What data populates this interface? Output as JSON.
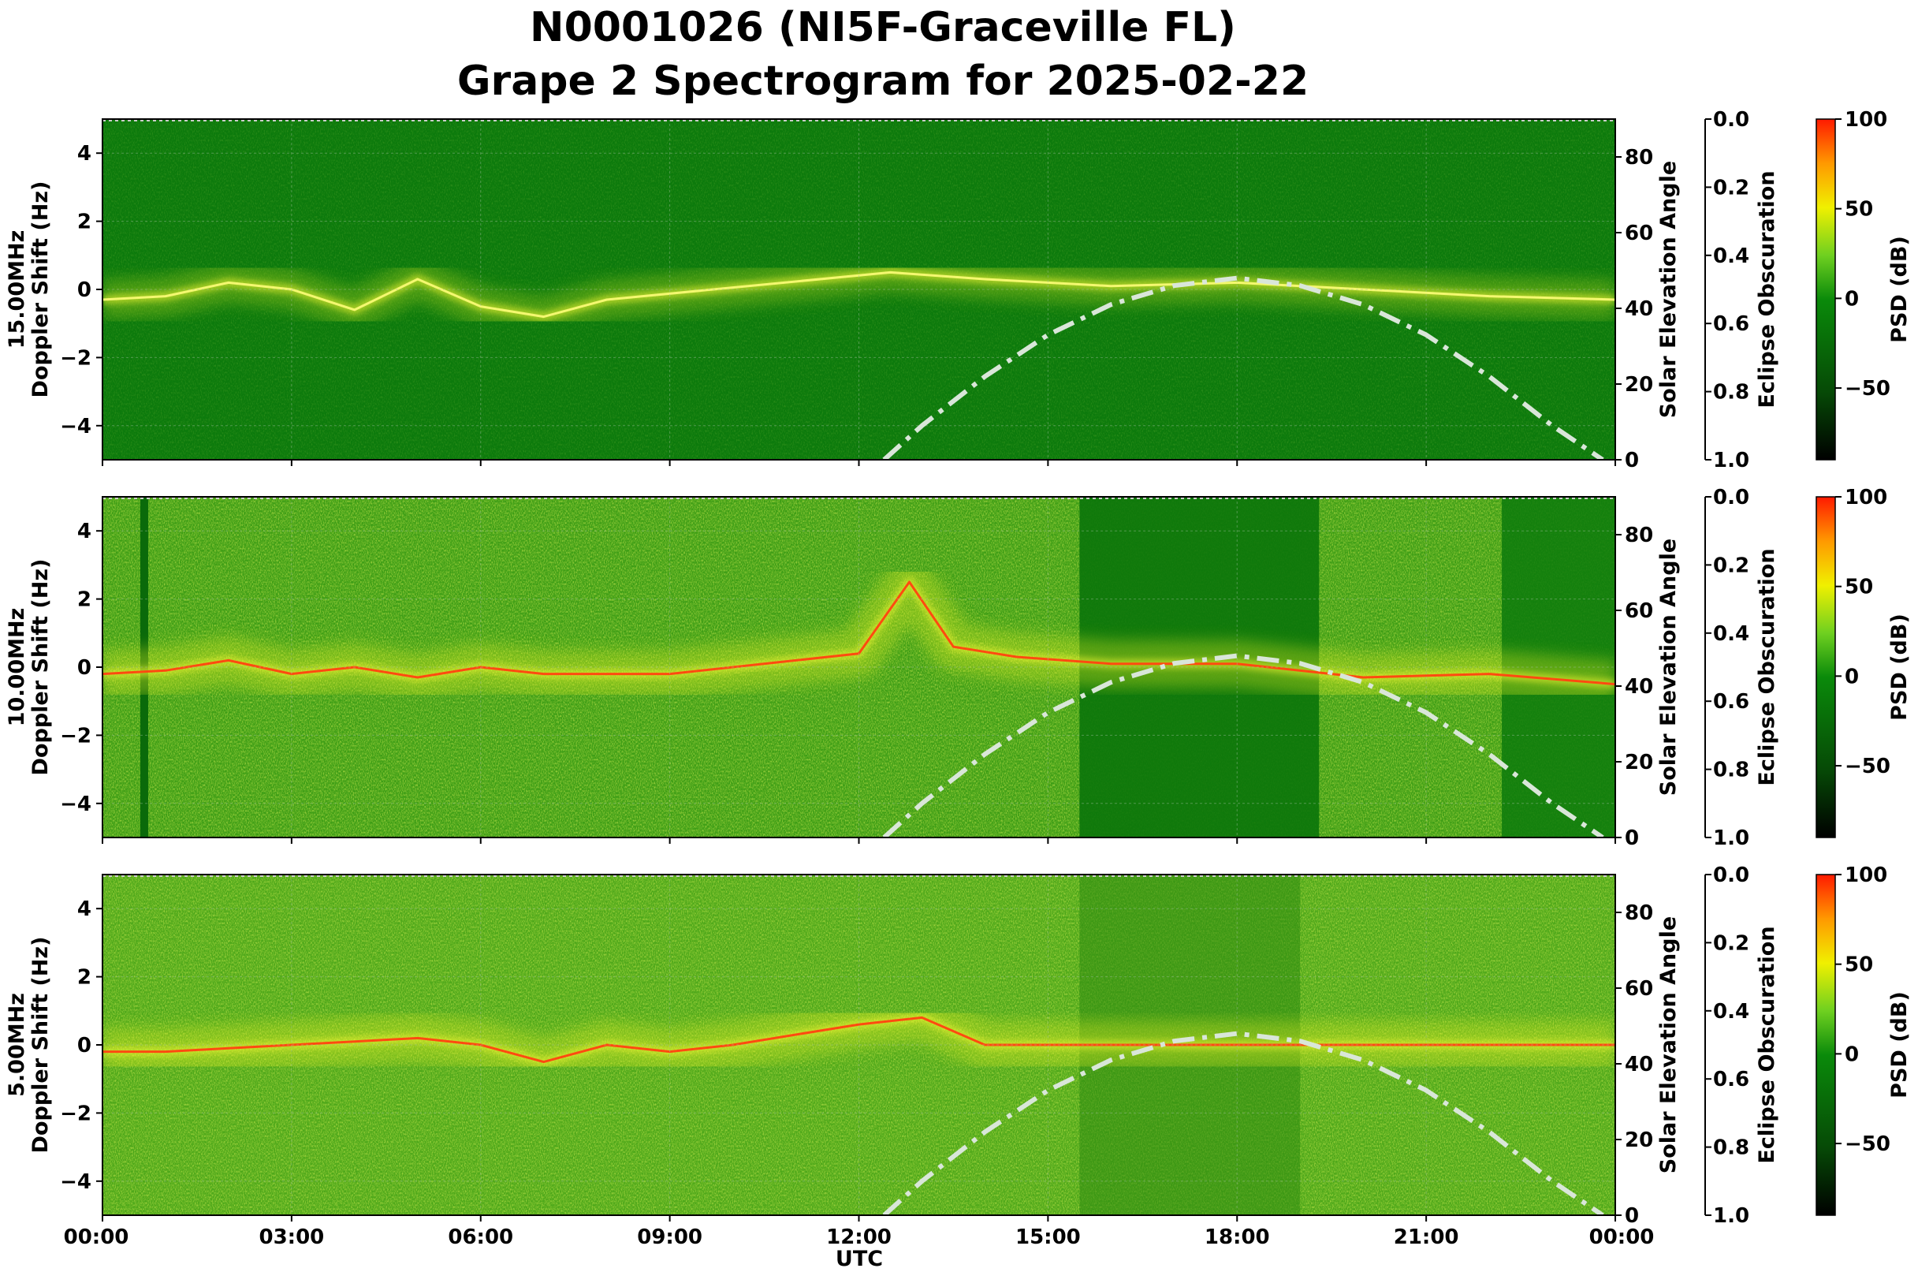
{
  "title_line1": "N0001026 (NI5F-Graceville FL)",
  "title_line2": "Grape 2 Spectrogram for 2025-02-22",
  "xlabel": "UTC",
  "x_ticks": [
    "00:00",
    "03:00",
    "06:00",
    "09:00",
    "12:00",
    "15:00",
    "18:00",
    "21:00",
    "00:00"
  ],
  "axis_labels": {
    "doppler": "Doppler Shift (Hz)",
    "solar": "Solar Elevation Angle",
    "eclipse": "Eclipse Obscuration",
    "psd": "PSD (dB)"
  },
  "doppler_ticks": [
    "4",
    "2",
    "0",
    "−2",
    "−4"
  ],
  "solar_ticks": [
    "80",
    "60",
    "40",
    "20",
    "0"
  ],
  "eclipse_ticks": [
    "0.0",
    "0.2",
    "0.4",
    "0.6",
    "0.8",
    "1.0"
  ],
  "psd_ticks": [
    "100",
    "50",
    "0",
    "−50"
  ],
  "colors": {
    "psd_high": "#ff1a00",
    "psd_mid": "#f0f000",
    "psd_zero": "#0a8a0a",
    "psd_low": "#000000",
    "solar_curve": "#d9e6d9"
  },
  "chart_data": [
    {
      "type": "heatmap",
      "panel_label": "15.00MHz",
      "x_range_hours": [
        0,
        24
      ],
      "ylim": [
        -5,
        5
      ],
      "y2lim_solar_deg": [
        0,
        90
      ],
      "y3lim_eclipse": [
        1.0,
        0.0
      ],
      "clim_psd_db": [
        -90,
        100
      ],
      "doppler_trace": {
        "x_hours": [
          0,
          1,
          2,
          3,
          4,
          5,
          6,
          7,
          8,
          12.5,
          14,
          16,
          18,
          20,
          22,
          24
        ],
        "y_hz": [
          -0.3,
          -0.2,
          0.2,
          0.0,
          -0.6,
          0.3,
          -0.5,
          -0.8,
          -0.3,
          0.5,
          0.3,
          0.1,
          0.2,
          0.0,
          -0.2,
          -0.3
        ]
      },
      "solar_elevation": {
        "x_hours": [
          12.4,
          13,
          14,
          15,
          16,
          17,
          18,
          19,
          20,
          21,
          22,
          23,
          23.8
        ],
        "deg": [
          0,
          9,
          22,
          33,
          41,
          46,
          48,
          46,
          41,
          33,
          22,
          9,
          0
        ]
      }
    },
    {
      "type": "heatmap",
      "panel_label": "10.00MHz",
      "x_range_hours": [
        0,
        24
      ],
      "ylim": [
        -5,
        5
      ],
      "y2lim_solar_deg": [
        0,
        90
      ],
      "y3lim_eclipse": [
        1.0,
        0.0
      ],
      "clim_psd_db": [
        -90,
        100
      ],
      "doppler_trace": {
        "x_hours": [
          0,
          1,
          2,
          3,
          4,
          5,
          6,
          7,
          9,
          11,
          12,
          12.8,
          13.5,
          14.5,
          16,
          18,
          20,
          22,
          24
        ],
        "y_hz": [
          -0.2,
          -0.1,
          0.2,
          -0.2,
          0.0,
          -0.3,
          0.0,
          -0.2,
          -0.2,
          0.2,
          0.4,
          2.5,
          0.6,
          0.3,
          0.1,
          0.1,
          -0.3,
          -0.2,
          -0.5
        ]
      },
      "solar_elevation": {
        "x_hours": [
          12.4,
          13,
          14,
          15,
          16,
          17,
          18,
          19,
          20,
          21,
          22,
          23,
          23.8
        ],
        "deg": [
          0,
          9,
          22,
          33,
          41,
          46,
          48,
          46,
          41,
          33,
          22,
          9,
          0
        ]
      }
    },
    {
      "type": "heatmap",
      "panel_label": "5.00MHz",
      "x_range_hours": [
        0,
        24
      ],
      "ylim": [
        -5,
        5
      ],
      "y2lim_solar_deg": [
        0,
        90
      ],
      "y3lim_eclipse": [
        1.0,
        0.0
      ],
      "clim_psd_db": [
        -90,
        100
      ],
      "doppler_trace": {
        "x_hours": [
          0,
          1,
          2,
          3,
          4,
          5,
          6,
          7,
          8,
          9,
          10,
          11,
          12,
          13,
          14,
          18,
          24
        ],
        "y_hz": [
          -0.2,
          -0.2,
          -0.1,
          0.0,
          0.1,
          0.2,
          0.0,
          -0.5,
          0.0,
          -0.2,
          0.0,
          0.3,
          0.6,
          0.8,
          0.0,
          0.0,
          0.0
        ]
      },
      "solar_elevation": {
        "x_hours": [
          12.4,
          13,
          14,
          15,
          16,
          17,
          18,
          19,
          20,
          21,
          22,
          23,
          23.8
        ],
        "deg": [
          0,
          9,
          22,
          33,
          41,
          46,
          48,
          46,
          41,
          33,
          22,
          9,
          0
        ]
      }
    }
  ]
}
